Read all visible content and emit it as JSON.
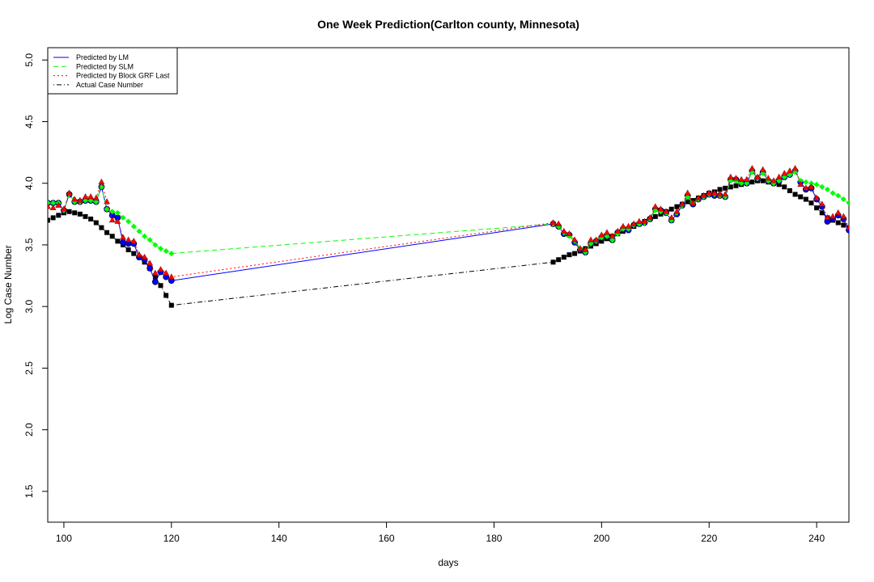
{
  "chart_data": {
    "type": "line",
    "title": "One Week Prediction(Carlton county, Minnesota)",
    "xlabel": "days",
    "ylabel": "Log Case Number",
    "xlim": [
      97,
      246
    ],
    "ylim": [
      1.25,
      5.1
    ],
    "xticks": [
      100,
      120,
      140,
      160,
      180,
      200,
      220,
      240
    ],
    "yticks": [
      1.5,
      2.0,
      2.5,
      3.0,
      3.5,
      4.0,
      4.5,
      5.0
    ],
    "ytick_labels": [
      "1.5",
      "2.0",
      "2.5",
      "3.0",
      "3.5",
      "4.0",
      "4.5",
      "5.0"
    ],
    "legend_position": "top-left",
    "x": [
      97,
      98,
      99,
      100,
      101,
      102,
      103,
      104,
      105,
      106,
      107,
      108,
      109,
      110,
      111,
      112,
      113,
      114,
      115,
      116,
      117,
      118,
      119,
      120,
      191,
      192,
      193,
      194,
      195,
      196,
      197,
      198,
      199,
      200,
      201,
      202,
      203,
      204,
      205,
      206,
      207,
      208,
      209,
      210,
      211,
      212,
      213,
      214,
      215,
      216,
      217,
      218,
      219,
      220,
      221,
      222,
      223,
      224,
      225,
      226,
      227,
      228,
      229,
      230,
      231,
      232,
      233,
      234,
      235,
      236,
      237,
      238,
      239,
      240,
      241,
      242,
      243,
      244,
      245,
      246
    ],
    "series": [
      {
        "name": "Predicted by LM",
        "color": "#0000ff",
        "line_style": "solid",
        "marker": "circle",
        "values": [
          3.84,
          3.84,
          3.84,
          3.78,
          3.91,
          3.85,
          3.85,
          3.86,
          3.86,
          3.85,
          3.97,
          3.79,
          3.74,
          3.72,
          3.52,
          3.51,
          3.51,
          3.4,
          3.38,
          3.31,
          3.2,
          3.28,
          3.24,
          3.21,
          3.67,
          3.65,
          3.59,
          3.58,
          3.52,
          3.46,
          3.44,
          3.51,
          3.53,
          3.56,
          3.57,
          3.54,
          3.6,
          3.63,
          3.62,
          3.66,
          3.67,
          3.68,
          3.71,
          3.79,
          3.78,
          3.76,
          3.7,
          3.75,
          3.82,
          3.9,
          3.83,
          3.87,
          3.89,
          3.91,
          3.9,
          3.9,
          3.89,
          4.03,
          4.03,
          4.01,
          4.0,
          4.1,
          4.04,
          4.09,
          4.02,
          4.0,
          4.02,
          4.05,
          4.07,
          4.1,
          4.01,
          3.95,
          3.96,
          3.87,
          3.81,
          3.69,
          3.71,
          3.74,
          3.71,
          3.62
        ]
      },
      {
        "name": "Predicted by SLM",
        "color": "#00ff00",
        "line_style": "dashed",
        "marker": "diamond",
        "values": [
          3.84,
          3.84,
          3.84,
          3.78,
          3.91,
          3.85,
          3.85,
          3.86,
          3.86,
          3.85,
          3.97,
          3.79,
          3.77,
          3.76,
          3.72,
          3.69,
          3.65,
          3.61,
          3.57,
          3.54,
          3.5,
          3.47,
          3.45,
          3.43,
          3.67,
          3.65,
          3.6,
          3.57,
          3.53,
          3.47,
          3.44,
          3.51,
          3.53,
          3.56,
          3.57,
          3.54,
          3.59,
          3.63,
          3.63,
          3.66,
          3.67,
          3.68,
          3.71,
          3.78,
          3.77,
          3.76,
          3.7,
          3.76,
          3.82,
          3.89,
          3.84,
          3.87,
          3.89,
          3.91,
          3.91,
          3.9,
          3.89,
          4.02,
          4.02,
          4.0,
          4.0,
          4.09,
          4.04,
          4.08,
          4.02,
          4.0,
          4.02,
          4.05,
          4.07,
          4.09,
          4.02,
          4.01,
          4.0,
          3.99,
          3.97,
          3.95,
          3.92,
          3.9,
          3.87,
          3.84
        ]
      },
      {
        "name": "Predicted by Block GRF Last",
        "color": "#ff0000",
        "line_style": "dotted",
        "marker": "triangle",
        "values": [
          3.81,
          3.8,
          3.82,
          3.79,
          3.92,
          3.87,
          3.86,
          3.89,
          3.89,
          3.88,
          4.01,
          3.85,
          3.7,
          3.69,
          3.56,
          3.54,
          3.53,
          3.42,
          3.4,
          3.35,
          3.27,
          3.3,
          3.27,
          3.24,
          3.68,
          3.67,
          3.61,
          3.59,
          3.54,
          3.47,
          3.46,
          3.54,
          3.54,
          3.58,
          3.6,
          3.57,
          3.61,
          3.65,
          3.65,
          3.67,
          3.69,
          3.69,
          3.72,
          3.81,
          3.79,
          3.77,
          3.72,
          3.77,
          3.83,
          3.92,
          3.84,
          3.88,
          3.9,
          3.92,
          3.92,
          3.91,
          3.91,
          4.05,
          4.04,
          4.03,
          4.03,
          4.12,
          4.05,
          4.11,
          4.04,
          4.02,
          4.05,
          4.08,
          4.1,
          4.12,
          3.99,
          3.96,
          3.97,
          3.88,
          3.83,
          3.72,
          3.73,
          3.76,
          3.73,
          3.64
        ]
      },
      {
        "name": "Actual Case Number",
        "color": "#000000",
        "line_style": "dotdash",
        "marker": "square",
        "values": [
          3.7,
          3.72,
          3.74,
          3.76,
          3.77,
          3.76,
          3.75,
          3.73,
          3.71,
          3.68,
          3.64,
          3.6,
          3.57,
          3.53,
          3.5,
          3.46,
          3.43,
          3.4,
          3.36,
          3.31,
          3.24,
          3.17,
          3.09,
          3.01,
          3.36,
          3.38,
          3.4,
          3.42,
          3.43,
          3.45,
          3.47,
          3.49,
          3.51,
          3.53,
          3.55,
          3.57,
          3.59,
          3.61,
          3.63,
          3.65,
          3.67,
          3.69,
          3.71,
          3.73,
          3.75,
          3.77,
          3.79,
          3.81,
          3.83,
          3.85,
          3.86,
          3.88,
          3.9,
          3.92,
          3.93,
          3.95,
          3.96,
          3.97,
          3.98,
          3.99,
          4.0,
          4.01,
          4.02,
          4.02,
          4.01,
          4.0,
          3.99,
          3.97,
          3.94,
          3.91,
          3.89,
          3.87,
          3.84,
          3.8,
          3.76,
          3.72,
          3.7,
          3.68,
          3.66,
          3.64
        ]
      }
    ]
  }
}
